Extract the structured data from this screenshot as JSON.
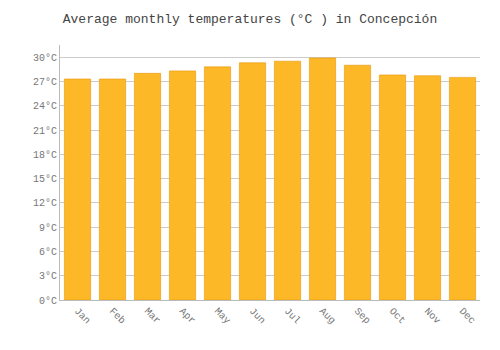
{
  "chart_data": {
    "type": "bar",
    "title": "Average monthly temperatures (°C ) in Concepción",
    "categories": [
      "Jan",
      "Feb",
      "Mar",
      "Apr",
      "May",
      "Jun",
      "Jul",
      "Aug",
      "Sep",
      "Oct",
      "Nov",
      "Dec"
    ],
    "values": [
      27.3,
      27.3,
      28.0,
      28.3,
      28.8,
      29.3,
      29.5,
      29.9,
      29.0,
      27.8,
      27.7,
      27.5
    ],
    "color": "#FDB827",
    "ylim": [
      0,
      31.5
    ],
    "yticks": [
      {
        "value": 0,
        "label": "0°C"
      },
      {
        "value": 3,
        "label": "3°C"
      },
      {
        "value": 6,
        "label": "6°C"
      },
      {
        "value": 9,
        "label": "9°C"
      },
      {
        "value": 12,
        "label": "12°C"
      },
      {
        "value": 15,
        "label": "15°C"
      },
      {
        "value": 18,
        "label": "18°C"
      },
      {
        "value": 21,
        "label": "21°C"
      },
      {
        "value": 24,
        "label": "24°C"
      },
      {
        "value": 27,
        "label": "27°C"
      },
      {
        "value": 30,
        "label": "30°C"
      }
    ],
    "grid": true
  }
}
